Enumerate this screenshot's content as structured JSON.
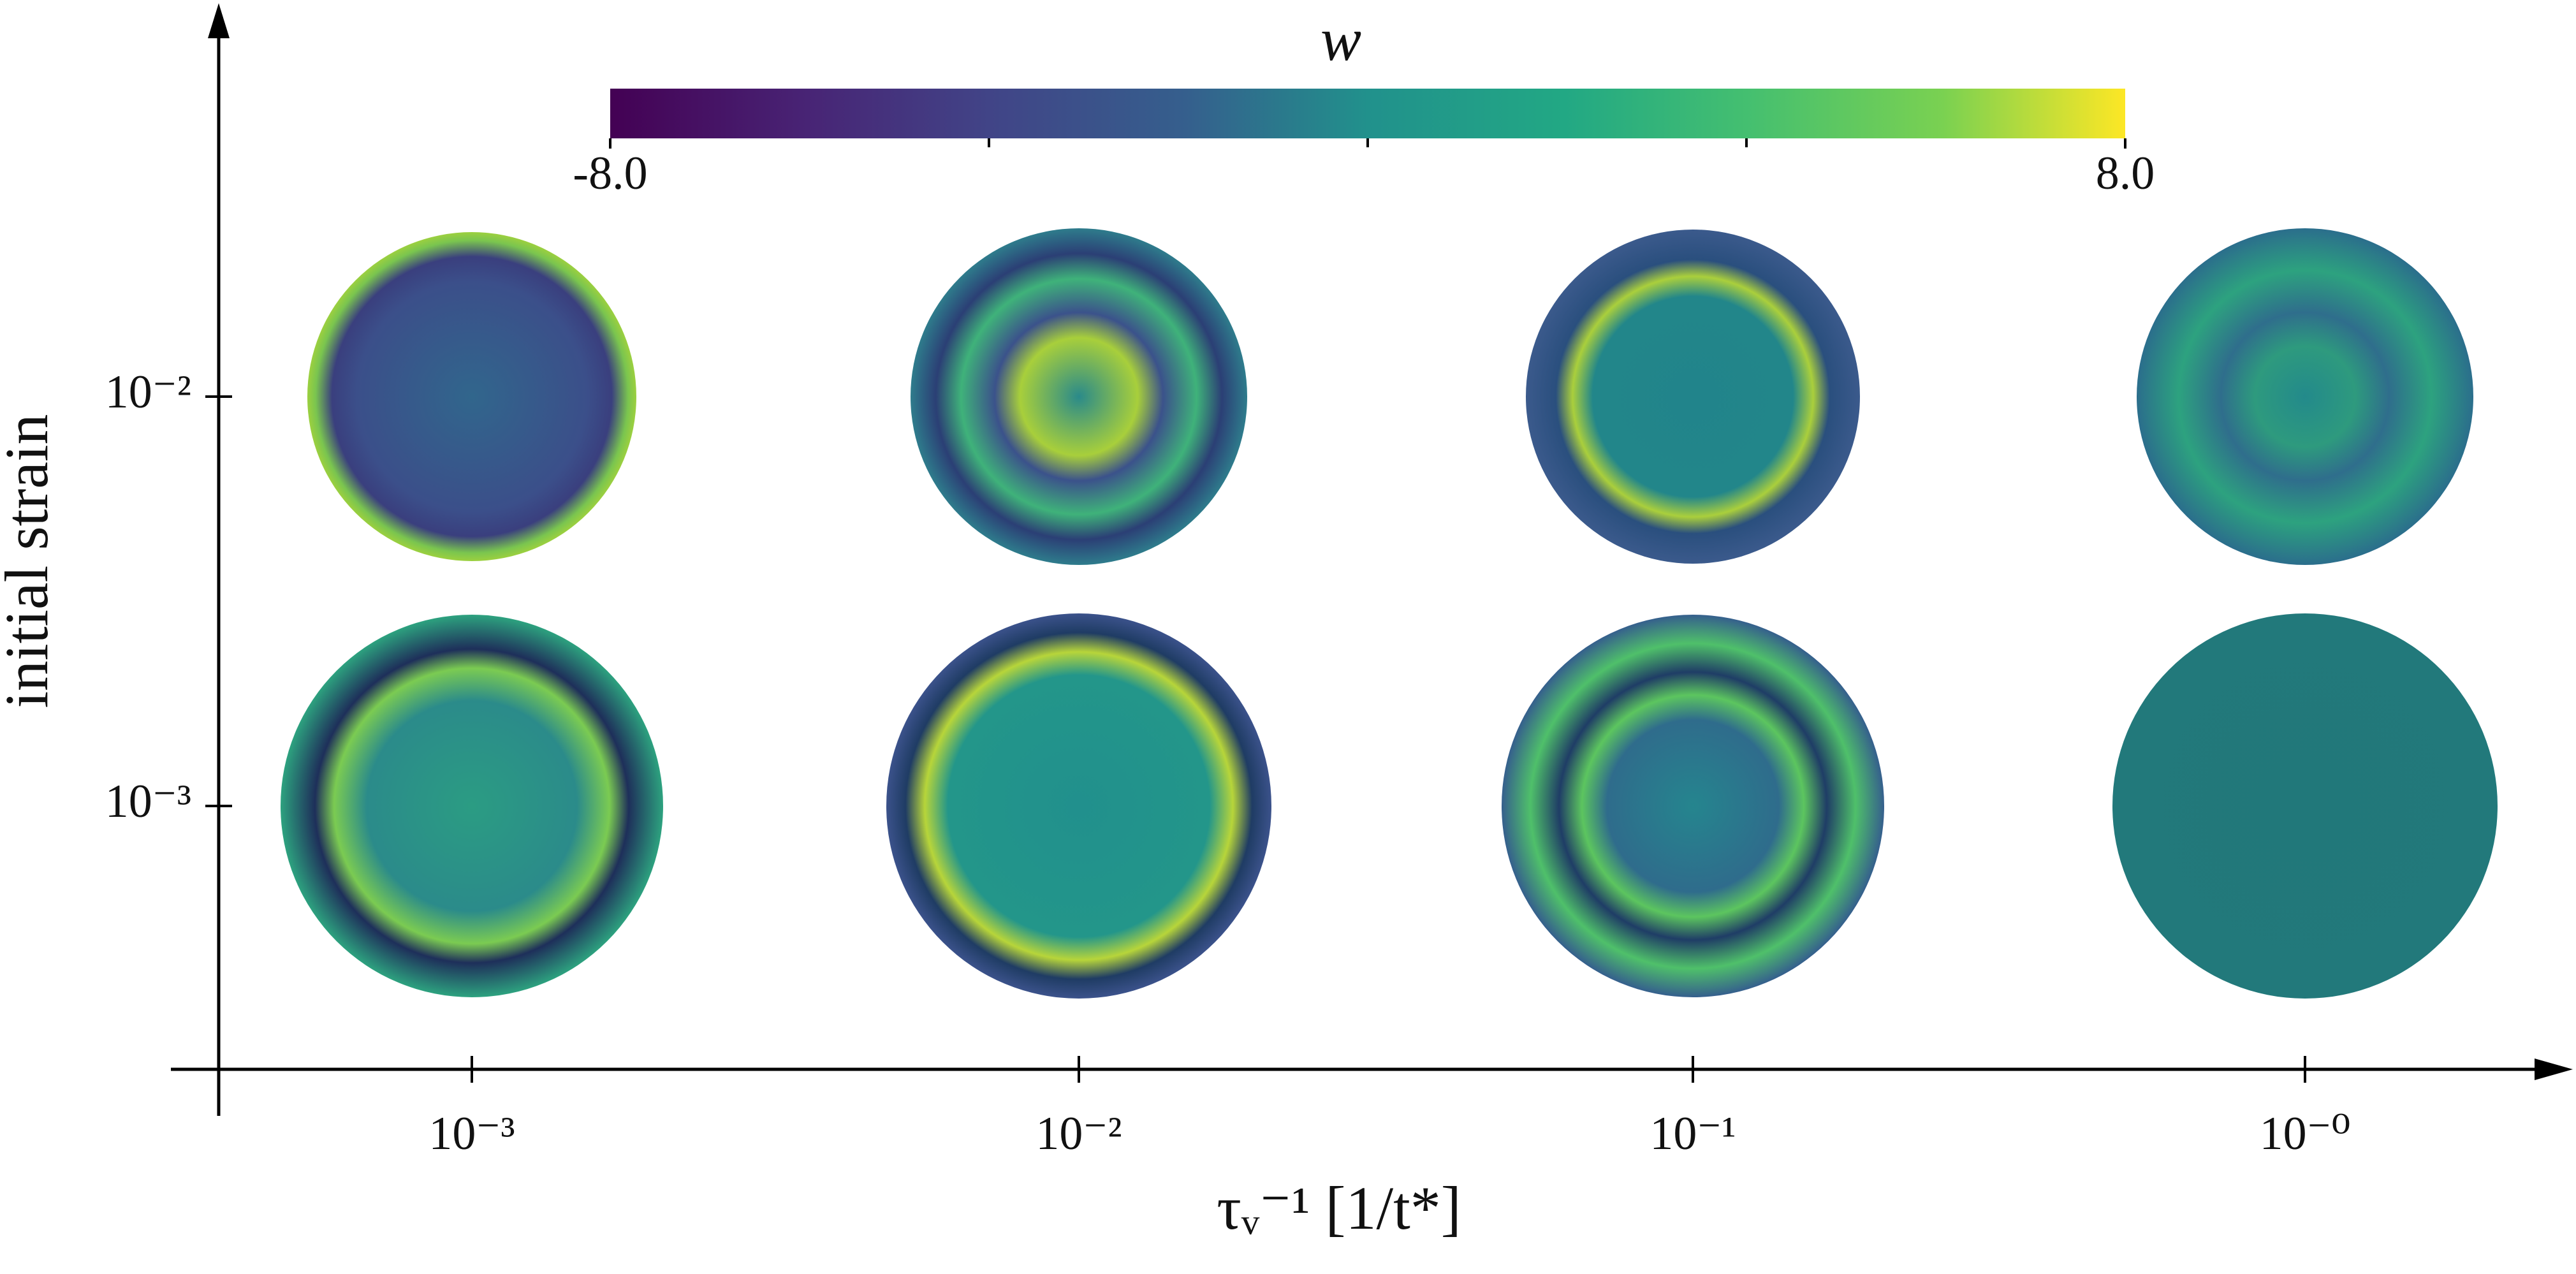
{
  "chart_data": {
    "type": "image-grid",
    "categories": [
      "10⁻³",
      "10⁻²",
      "10⁻¹",
      "10⁻⁰"
    ],
    "y_categories": [
      "10⁻²",
      "10⁻³"
    ],
    "xlabel": "τᵥ⁻¹ [1/t*]",
    "ylabel": "initial strain",
    "colorbar": {
      "label": "w",
      "colormap": "viridis",
      "lim": [
        -8,
        8
      ],
      "ticks": [
        {
          "value": -8,
          "label": "-8.0"
        },
        {
          "value": 8,
          "label": "8.0"
        }
      ],
      "minor_ticks": [
        -4,
        0,
        4
      ]
    }
  }
}
